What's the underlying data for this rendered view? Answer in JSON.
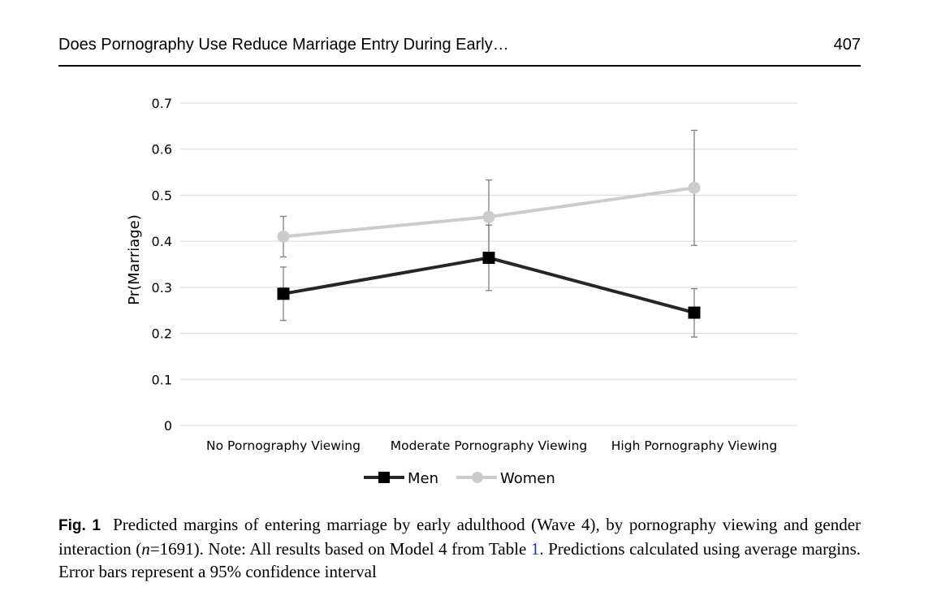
{
  "header": {
    "running_title": "Does Pornography Use Reduce Marriage Entry During Early…",
    "page_number": "407"
  },
  "chart_data": {
    "type": "line",
    "title": "",
    "xlabel": "",
    "ylabel": "Pr(Marriage)",
    "categories": [
      "No Pornography Viewing",
      "Moderate Pornography Viewing",
      "High Pornography Viewing"
    ],
    "ylim": [
      0,
      0.7
    ],
    "yticks": [
      0,
      0.1,
      0.2,
      0.3,
      0.4,
      0.5,
      0.6,
      0.7
    ],
    "ytick_labels": [
      "0",
      "0.1",
      "0.2",
      "0.3",
      "0.4",
      "0.5",
      "0.6",
      "0.7"
    ],
    "grid": true,
    "legend": "bottom-center",
    "series": [
      {
        "name": "Men",
        "color": "#262626",
        "marker": "square",
        "values": [
          0.286,
          0.364,
          0.245
        ],
        "ci_low": [
          0.228,
          0.293,
          0.192
        ],
        "ci_high": [
          0.344,
          0.435,
          0.297
        ]
      },
      {
        "name": "Women",
        "color": "#cccccc",
        "marker": "circle",
        "values": [
          0.41,
          0.453,
          0.516
        ],
        "ci_low": [
          0.366,
          0.373,
          0.391
        ],
        "ci_high": [
          0.454,
          0.533,
          0.641
        ]
      }
    ]
  },
  "caption": {
    "label": "Fig. 1",
    "text_1": "Predicted margins of entering marriage by early adulthood (Wave 4), by pornography viewing and gender interaction (",
    "n_var": "n",
    "n_eq": "=1691",
    "text_2": "). Note: All results based on Model 4 from Table ",
    "table_ref": "1",
    "text_3": ". Predictions calculated using average margins. Error bars represent a 95% confidence interval"
  }
}
